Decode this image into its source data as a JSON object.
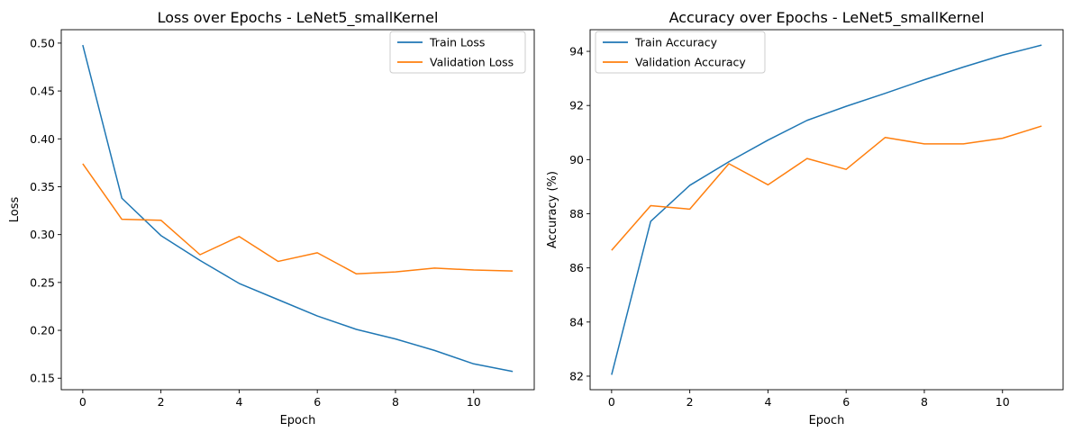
{
  "colors": {
    "train": "#1f77b4",
    "validation": "#ff7f0e",
    "axes": "#000000",
    "legend_border": "#cccccc"
  },
  "chart_data": [
    {
      "type": "line",
      "title": "Loss over Epochs - LeNet5_smallKernel",
      "xlabel": "Epoch",
      "ylabel": "Loss",
      "xlim": [
        -0.55,
        11.55
      ],
      "ylim": [
        0.138,
        0.514
      ],
      "xticks": [
        0,
        2,
        4,
        6,
        8,
        10
      ],
      "yticks": [
        0.15,
        0.2,
        0.25,
        0.3,
        0.35,
        0.4,
        0.45,
        0.5
      ],
      "ytick_labels": [
        "0.15",
        "0.20",
        "0.25",
        "0.30",
        "0.35",
        "0.40",
        "0.45",
        "0.50"
      ],
      "grid": false,
      "legend_position": "top-right",
      "x": [
        0,
        1,
        2,
        3,
        4,
        5,
        6,
        7,
        8,
        9,
        10,
        11
      ],
      "series": [
        {
          "name": "Train Loss",
          "color": "#1f77b4",
          "values": [
            0.498,
            0.338,
            0.299,
            0.273,
            0.249,
            0.232,
            0.215,
            0.201,
            0.191,
            0.179,
            0.165,
            0.157
          ]
        },
        {
          "name": "Validation Loss",
          "color": "#ff7f0e",
          "values": [
            0.374,
            0.316,
            0.315,
            0.279,
            0.298,
            0.272,
            0.281,
            0.259,
            0.261,
            0.265,
            0.263,
            0.262
          ]
        }
      ]
    },
    {
      "type": "line",
      "title": "Accuracy over Epochs - LeNet5_smallKernel",
      "xlabel": "Epoch",
      "ylabel": "Accuracy (%)",
      "xlim": [
        -0.55,
        11.55
      ],
      "ylim": [
        81.5,
        94.8
      ],
      "xticks": [
        0,
        2,
        4,
        6,
        8,
        10
      ],
      "yticks": [
        82,
        84,
        86,
        88,
        90,
        92,
        94
      ],
      "ytick_labels": [
        "82",
        "84",
        "86",
        "88",
        "90",
        "92",
        "94"
      ],
      "grid": false,
      "legend_position": "top-left",
      "x": [
        0,
        1,
        2,
        3,
        4,
        5,
        6,
        7,
        8,
        9,
        10,
        11
      ],
      "series": [
        {
          "name": "Train Accuracy",
          "color": "#1f77b4",
          "values": [
            82.05,
            87.72,
            89.05,
            89.92,
            90.72,
            91.45,
            91.97,
            92.45,
            92.95,
            93.42,
            93.86,
            94.23
          ]
        },
        {
          "name": "Validation Accuracy",
          "color": "#ff7f0e",
          "values": [
            86.65,
            88.3,
            88.17,
            89.85,
            89.07,
            90.04,
            89.64,
            90.82,
            90.58,
            90.58,
            90.79,
            91.24
          ]
        }
      ]
    }
  ]
}
